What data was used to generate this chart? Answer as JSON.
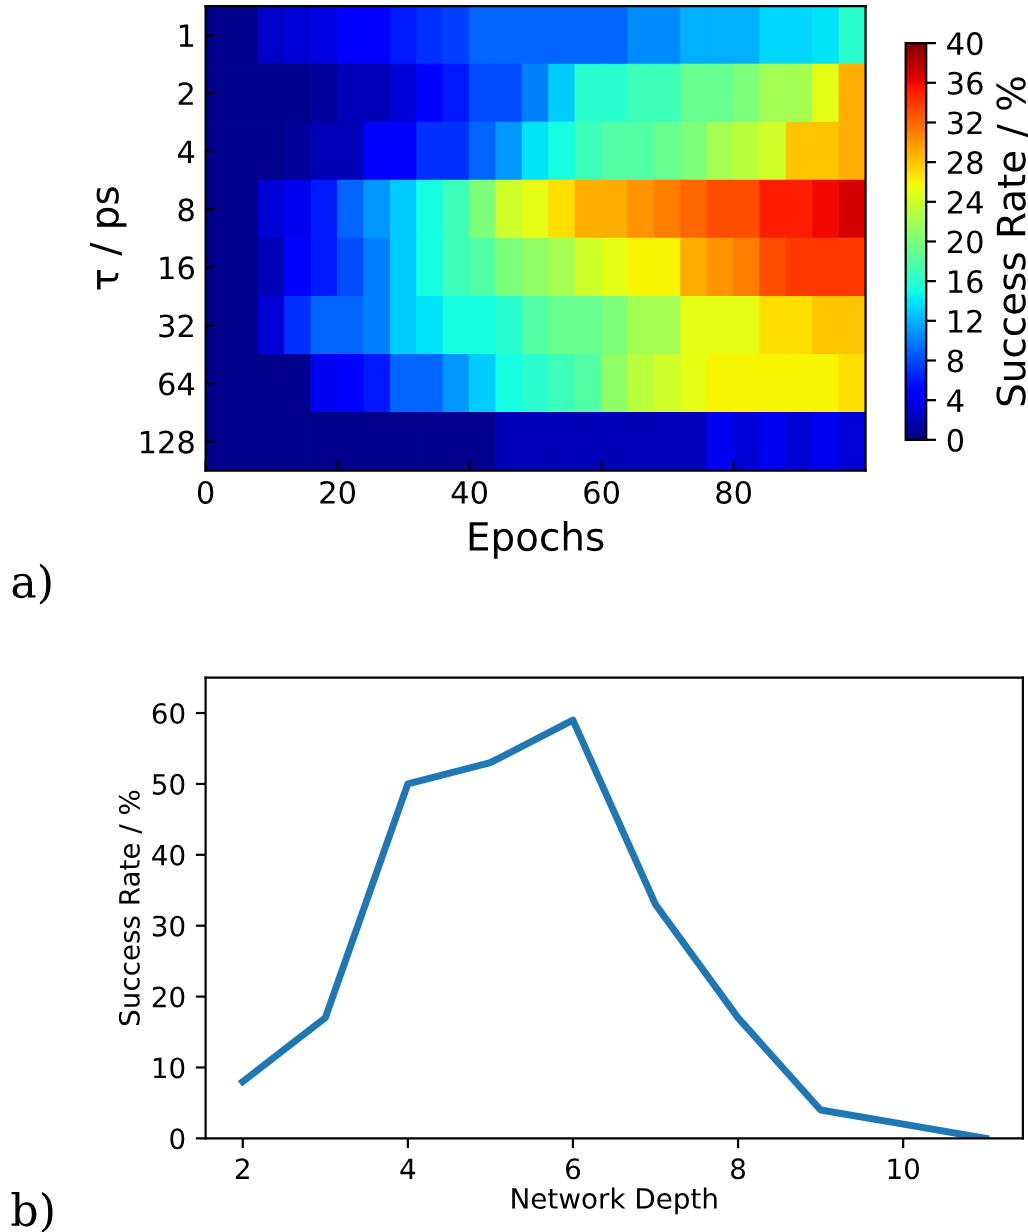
{
  "chart_data": [
    {
      "type": "heatmap",
      "xlabel": "Epochs",
      "ylabel": "τ / ps",
      "clabel": "Success Rate / %",
      "annotations": [
        "a)"
      ],
      "x": [
        2,
        6,
        10,
        14,
        18,
        22,
        26,
        30,
        34,
        38,
        42,
        46,
        50,
        54,
        58,
        62,
        66,
        70,
        74,
        78,
        82,
        86,
        90,
        94,
        98
      ],
      "xlim": [
        0,
        100
      ],
      "xticks": [
        0,
        20,
        40,
        60,
        80
      ],
      "y_categories": [
        "1",
        "2",
        "4",
        "8",
        "16",
        "32",
        "64",
        "128"
      ],
      "cells": [
        [
          0.5,
          0.5,
          2.5,
          3,
          3.5,
          5,
          5,
          6,
          7,
          7.5,
          9,
          9,
          9,
          9,
          9,
          9,
          10.5,
          10.5,
          12,
          12,
          12,
          13.5,
          13.5,
          14,
          16
        ],
        [
          0.5,
          0.5,
          0.5,
          0.5,
          1,
          2,
          2,
          3,
          5,
          6,
          8,
          8,
          10,
          13,
          16,
          16,
          17,
          17,
          19,
          19,
          20,
          22,
          22,
          25,
          29
        ],
        [
          0.5,
          0.5,
          0.5,
          1,
          2,
          2,
          5,
          5,
          7,
          7,
          9,
          11,
          14,
          15,
          17,
          18,
          18,
          19,
          20,
          22,
          23,
          24,
          28,
          28,
          29
        ],
        [
          0.5,
          0.5,
          3,
          4,
          6,
          9,
          11,
          13,
          15,
          17,
          20,
          24,
          25,
          27,
          29,
          29,
          30,
          31,
          32,
          33,
          33,
          35,
          35,
          36,
          37
        ],
        [
          0.5,
          0.5,
          2,
          5,
          6,
          8,
          10,
          13,
          15,
          17,
          18,
          20,
          21,
          22,
          24,
          25,
          26,
          26,
          29,
          30,
          31,
          33,
          34,
          34,
          34
        ],
        [
          0.5,
          0.5,
          3,
          7,
          9,
          9,
          10,
          13,
          14,
          15,
          15,
          16,
          18,
          19,
          19,
          20,
          22,
          22,
          25,
          25,
          25,
          27,
          27,
          28,
          28
        ],
        [
          0.5,
          0.5,
          0.5,
          0.5,
          4,
          5,
          6,
          9,
          9,
          11,
          13,
          15,
          16,
          17,
          18,
          21,
          23,
          24,
          25,
          26,
          26,
          26,
          26,
          26,
          27
        ],
        [
          0.5,
          0.5,
          0.5,
          0.5,
          0.5,
          0.5,
          0.5,
          0.5,
          0.5,
          0.5,
          0.5,
          2,
          2,
          2,
          2,
          2,
          2,
          2,
          2,
          4,
          3,
          4,
          3,
          4,
          3
        ]
      ],
      "clim": [
        0,
        40
      ],
      "cticks": [
        0,
        4,
        8,
        12,
        16,
        20,
        24,
        28,
        32,
        36,
        40
      ]
    },
    {
      "type": "line",
      "xlabel": "Network Depth",
      "ylabel": "Success Rate / %",
      "annotations": [
        "b)"
      ],
      "x": [
        2,
        3,
        4,
        5,
        6,
        7,
        8,
        9,
        10,
        11
      ],
      "series": [
        {
          "color": "#1f77b4",
          "values": [
            8,
            17,
            50,
            53,
            59,
            33,
            17,
            4,
            2,
            0
          ]
        }
      ],
      "xlim": [
        1.55,
        11.45
      ],
      "xticks": [
        2,
        4,
        6,
        8,
        10
      ],
      "ylim": [
        0,
        65
      ],
      "yticks": [
        0,
        10,
        20,
        30,
        40,
        50,
        60
      ],
      "marker": "none",
      "line_style": "solid"
    }
  ]
}
